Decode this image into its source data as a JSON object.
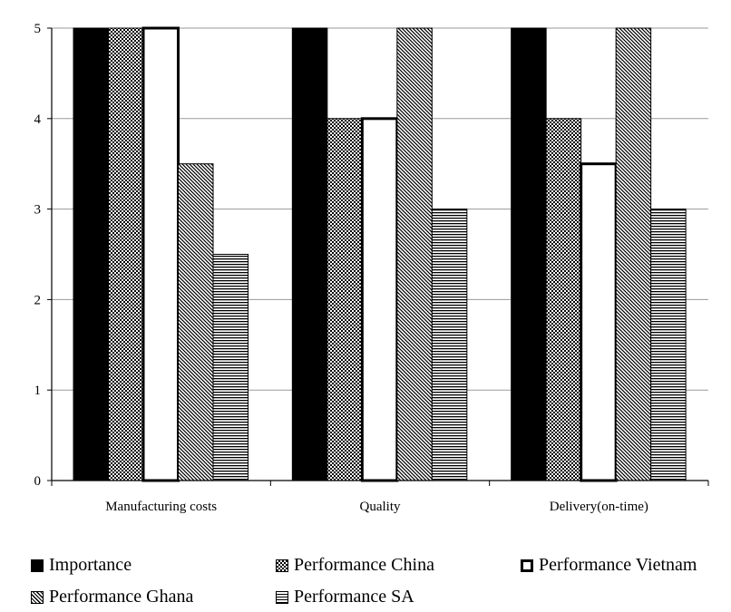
{
  "chart_data": {
    "type": "bar",
    "categories": [
      "Manufacturing costs",
      "Quality",
      "Delivery(on-time)"
    ],
    "series": [
      {
        "name": "Importance",
        "values": [
          5,
          5,
          5
        ],
        "pattern": "solid"
      },
      {
        "name": "Performance China",
        "values": [
          5,
          4,
          4
        ],
        "pattern": "checker"
      },
      {
        "name": "Performance Vietnam",
        "values": [
          5,
          4,
          3.5
        ],
        "pattern": "white"
      },
      {
        "name": "Performance Ghana",
        "values": [
          3.5,
          5,
          5
        ],
        "pattern": "diagonal"
      },
      {
        "name": "Performance SA",
        "values": [
          2.5,
          3,
          3
        ],
        "pattern": "horizontal"
      }
    ],
    "yticks": [
      "0",
      "1",
      "2",
      "3",
      "4",
      "5"
    ],
    "ylim": [
      0,
      5
    ],
    "grid": true,
    "legend_position": "bottom",
    "title": "",
    "xlabel": "",
    "ylabel": ""
  }
}
